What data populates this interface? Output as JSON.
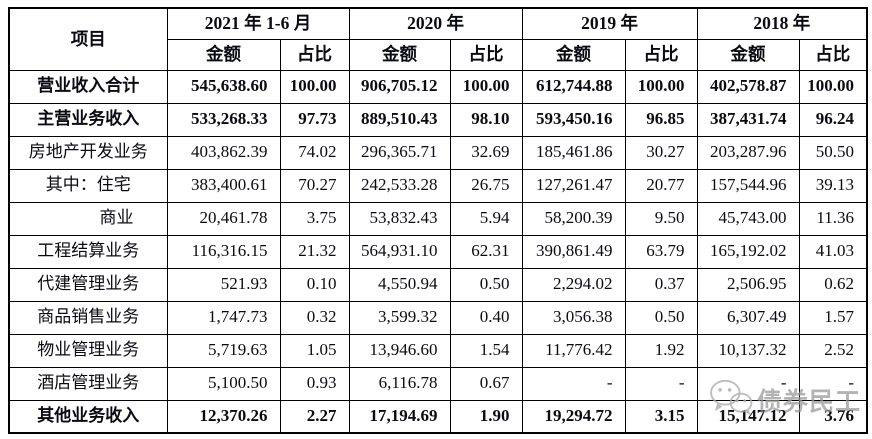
{
  "table": {
    "corner_header": "项目",
    "year_groups": [
      {
        "label": "2021 年 1-6 月"
      },
      {
        "label": "2020 年"
      },
      {
        "label": "2019 年"
      },
      {
        "label": "2018 年"
      }
    ],
    "sub_headers": [
      "金额",
      "占比"
    ],
    "rows": [
      {
        "label": "营业收入合计",
        "bold": true,
        "cells": [
          "545,638.60",
          "100.00",
          "906,705.12",
          "100.00",
          "612,744.88",
          "100.00",
          "402,578.87",
          "100.00"
        ]
      },
      {
        "label": "主营业务收入",
        "bold": true,
        "cells": [
          "533,268.33",
          "97.73",
          "889,510.43",
          "98.10",
          "593,450.16",
          "96.85",
          "387,431.74",
          "96.24"
        ]
      },
      {
        "label": "房地产开发业务",
        "cells": [
          "403,862.39",
          "74.02",
          "296,365.71",
          "32.69",
          "185,461.86",
          "30.27",
          "203,287.96",
          "50.50"
        ]
      },
      {
        "label": "其中：住宅",
        "cells": [
          "383,400.61",
          "70.27",
          "242,533.28",
          "26.75",
          "127,261.47",
          "20.77",
          "157,544.96",
          "39.13"
        ]
      },
      {
        "label": "商业",
        "align": "right",
        "cells": [
          "20,461.78",
          "3.75",
          "53,832.43",
          "5.94",
          "58,200.39",
          "9.50",
          "45,743.00",
          "11.36"
        ]
      },
      {
        "label": "工程结算业务",
        "cells": [
          "116,316.15",
          "21.32",
          "564,931.10",
          "62.31",
          "390,861.49",
          "63.79",
          "165,192.02",
          "41.03"
        ]
      },
      {
        "label": "代建管理业务",
        "cells": [
          "521.93",
          "0.10",
          "4,550.94",
          "0.50",
          "2,294.02",
          "0.37",
          "2,506.95",
          "0.62"
        ]
      },
      {
        "label": "商品销售业务",
        "cells": [
          "1,747.73",
          "0.32",
          "3,599.32",
          "0.40",
          "3,056.38",
          "0.50",
          "6,307.49",
          "1.57"
        ]
      },
      {
        "label": "物业管理业务",
        "cells": [
          "5,719.63",
          "1.05",
          "13,946.60",
          "1.54",
          "11,776.42",
          "1.92",
          "10,137.32",
          "2.52"
        ]
      },
      {
        "label": "酒店管理业务",
        "cells": [
          "5,100.50",
          "0.93",
          "6,116.78",
          "0.67",
          "-",
          "-",
          "-",
          "-"
        ]
      },
      {
        "label": "其他业务收入",
        "bold": true,
        "cells": [
          "12,370.26",
          "2.27",
          "17,194.69",
          "1.90",
          "19,294.72",
          "3.15",
          "15,147.12",
          "3.76"
        ]
      }
    ]
  },
  "watermark": {
    "text": "债券民工",
    "icon": "wechat-logo-icon",
    "color": "#999999"
  }
}
